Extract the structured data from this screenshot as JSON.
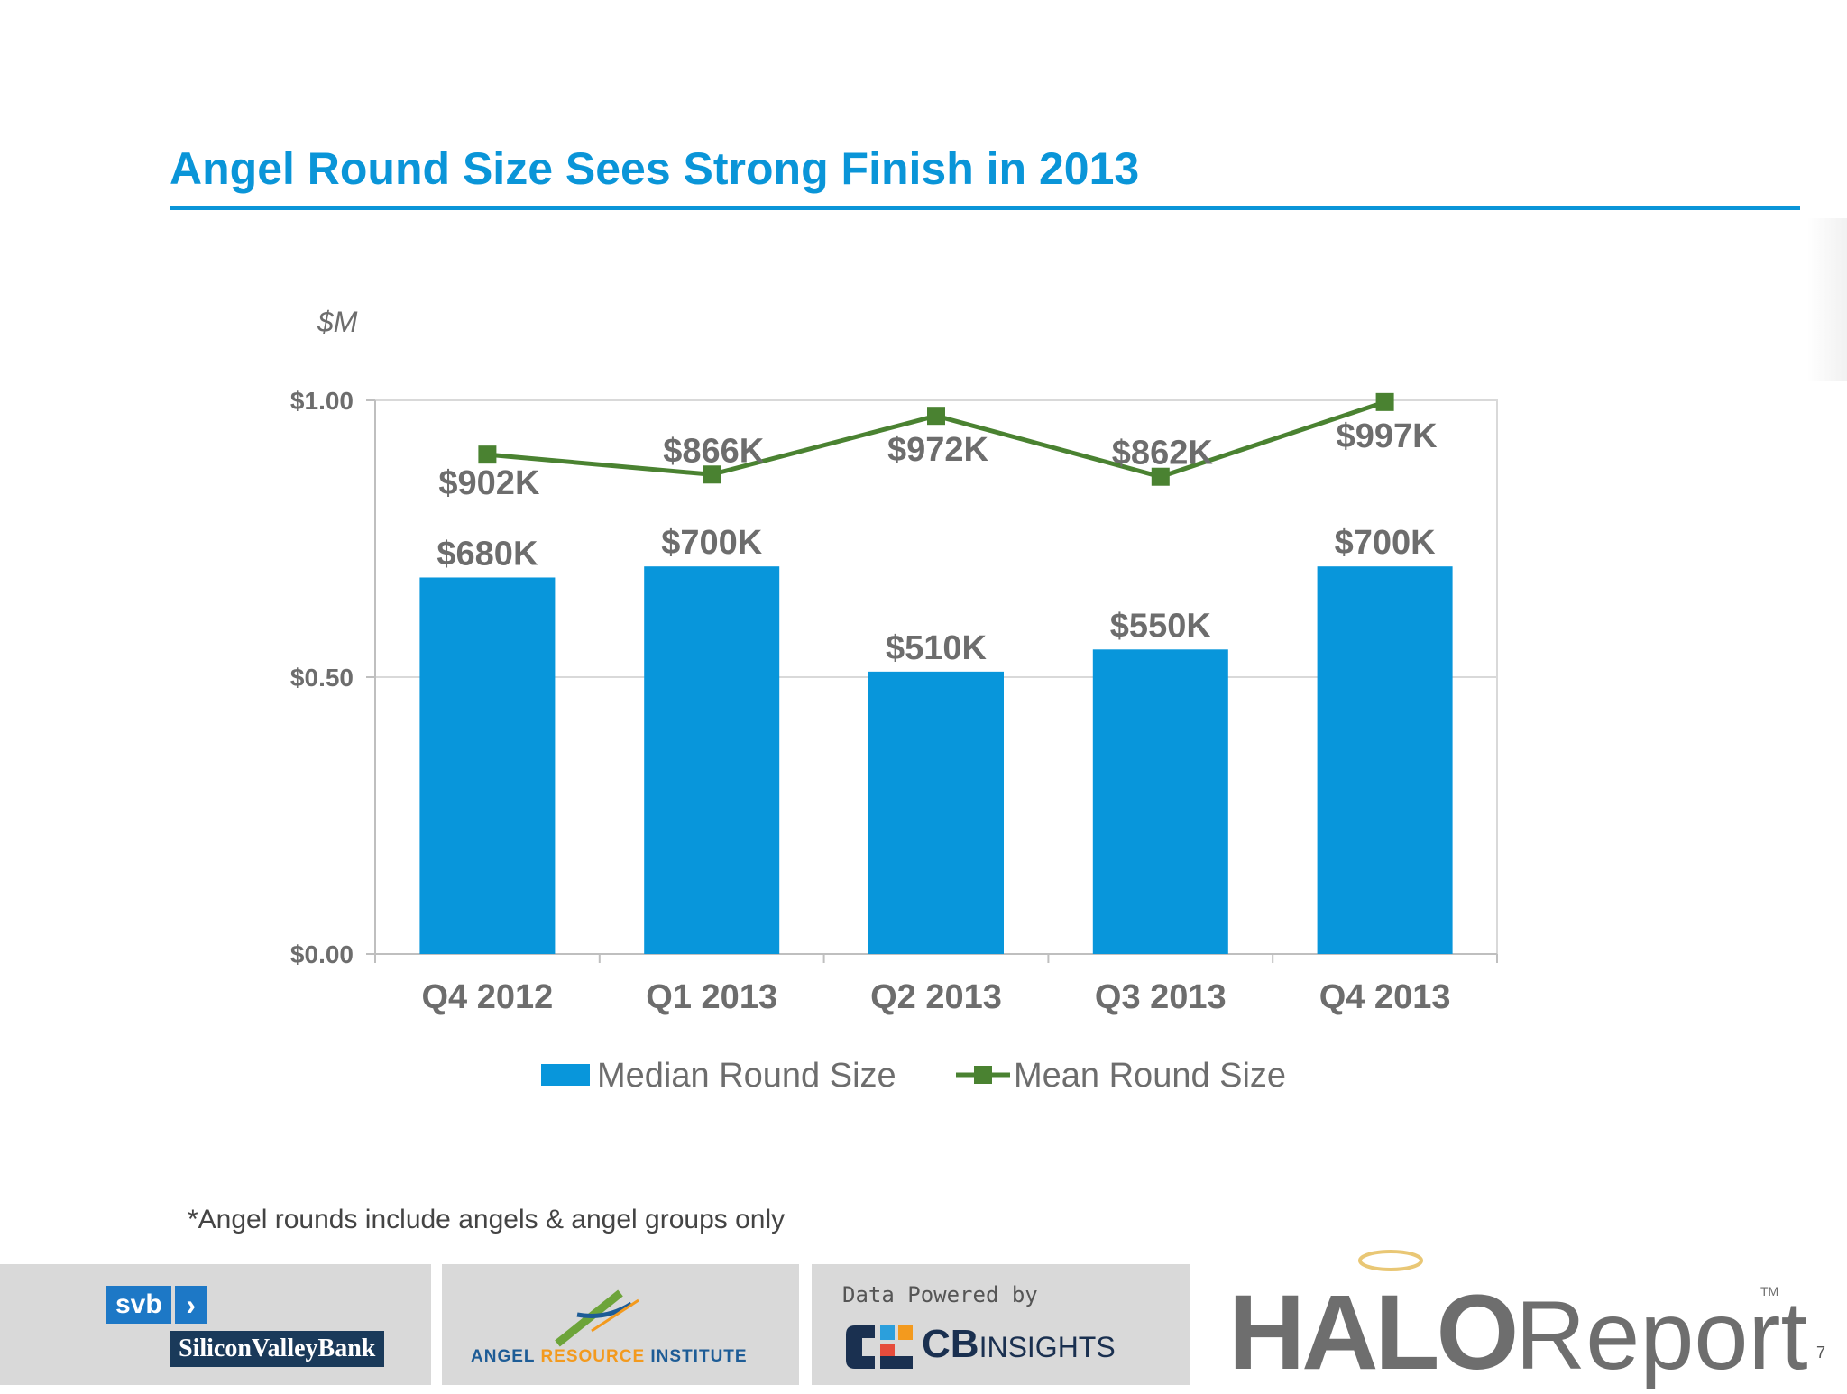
{
  "page": {
    "title": "Angel Round Size Sees Strong Finish in 2013",
    "footnote": "*Angel rounds include angels & angel groups only",
    "page_number": "7"
  },
  "chart_data": {
    "type": "bar",
    "unit_label": "$M",
    "categories": [
      "Q4 2012",
      "Q1 2013",
      "Q2 2013",
      "Q3 2013",
      "Q4 2013"
    ],
    "series": [
      {
        "name": "Median Round Size",
        "type": "bar",
        "color": "#0896db",
        "values": [
          0.68,
          0.7,
          0.51,
          0.55,
          0.7
        ],
        "labels": [
          "$680K",
          "$700K",
          "$510K",
          "$550K",
          "$700K"
        ]
      },
      {
        "name": "Mean Round Size",
        "type": "line",
        "color": "#4a8231",
        "values": [
          0.902,
          0.866,
          0.972,
          0.862,
          0.997
        ],
        "labels": [
          "$902K",
          "$866K",
          "$972K",
          "$862K",
          "$997K"
        ]
      }
    ],
    "ylim": [
      0,
      1
    ],
    "yticks": [
      0,
      0.5,
      1
    ],
    "ytick_labels": [
      "$0.00",
      "$0.50",
      "$1.00"
    ],
    "grid": true,
    "legend": "bottom-center"
  },
  "logos": {
    "svb_short": "svb",
    "svb_name": "SiliconValleyBank",
    "ari": {
      "part1": "ANGEL ",
      "part2": "RESOURCE",
      "part3": " INSTITUTE"
    },
    "cb_powered": "Data Powered by",
    "cb_bold": "CB",
    "cb_light": "INSIGHTS",
    "halo_bold": "HALO",
    "halo_light": "Report",
    "halo_tm": "TM"
  },
  "colors": {
    "title": "#0a95d8",
    "value_label": "#6d6d6d",
    "axis_text": "#6d6d6d",
    "gridline": "#d9d9d9"
  }
}
